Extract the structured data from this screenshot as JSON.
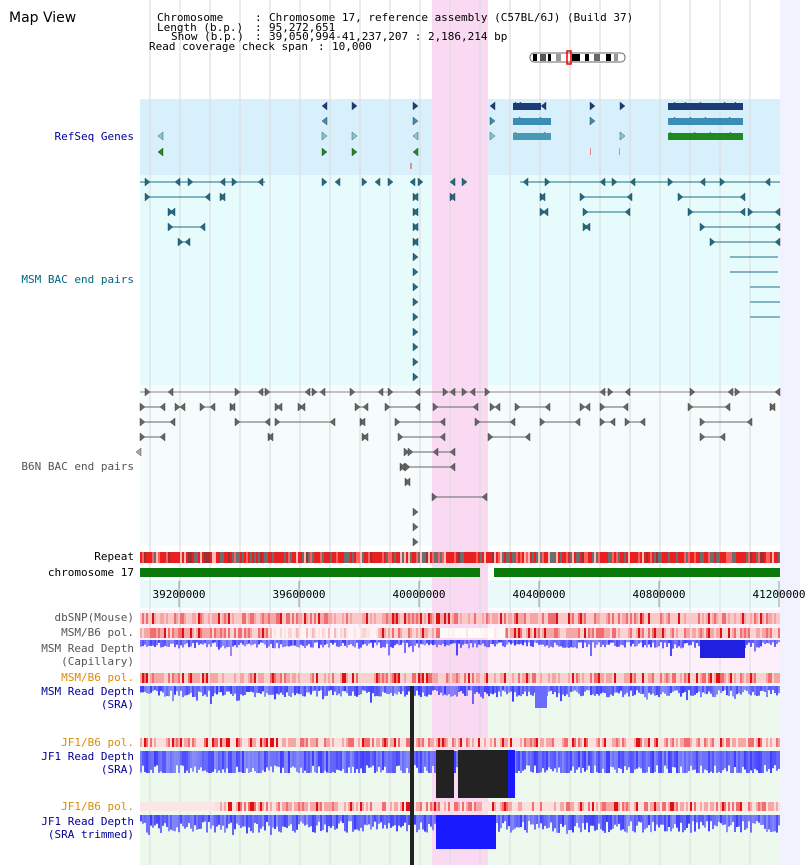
{
  "view_title": "Map View",
  "header": {
    "chromosome_key": "Chromosome",
    "chromosome_val": "Chromosome 17, reference assembly (C57BL/6J) (Build 37)",
    "length_key": "Length (b.p.)",
    "length_val": "95,272,651",
    "show_key": "Show (b.p.)",
    "show_val": "39,050,994-41,237,207 : 2,186,214 bp",
    "coverage_key": "Read coverage check span",
    "coverage_val": "10,000"
  },
  "colors": {
    "refseq_bg": "#d8f0fb",
    "bac_bg": "#e6fbfb",
    "highlight": "#fadaf2",
    "gene_dark": "#1a3d7a",
    "gene_mid": "#3c8db5",
    "gene_light": "#87c8d8",
    "gene_green": "#1f8a1f",
    "chrom_green": "#0a7a0a",
    "depth_blue": "#3b3bff",
    "label_blue": "#000099",
    "label_orange": "#e08a00",
    "label_teal": "#006680"
  },
  "tracks": {
    "refseq": "RefSeq Genes",
    "msm_bac": "MSM BAC end pairs",
    "b6n_bac": "B6N BAC end pairs",
    "repeat": "Repeat",
    "chromosome": "chromosome 17",
    "dbsnp": "dbSNP(Mouse)",
    "msm_pol1": "MSM/B6 pol.",
    "msm_depth_cap_1": "MSM Read Depth",
    "msm_depth_cap_2": "(Capillary)",
    "msm_pol2": "MSM/B6 pol.",
    "msm_depth_sra_1": "MSM Read Depth",
    "msm_depth_sra_2": "(SRA)",
    "jf1_pol1": "JF1/B6 pol.",
    "jf1_depth_sra_1": "JF1 Read Depth",
    "jf1_depth_sra_2": "(SRA)",
    "jf1_pol2": "JF1/B6 pol.",
    "jf1_depth_trim_1": "JF1 Read Depth",
    "jf1_depth_trim_2": "(SRA trimmed)"
  },
  "ruler": {
    "ticks": [
      39200000,
      39600000,
      40000000,
      40400000,
      40800000,
      41200000
    ],
    "tick_labels": [
      "39200000",
      "39600000",
      "40000000",
      "40400000",
      "40800000",
      "41200000"
    ]
  }
}
